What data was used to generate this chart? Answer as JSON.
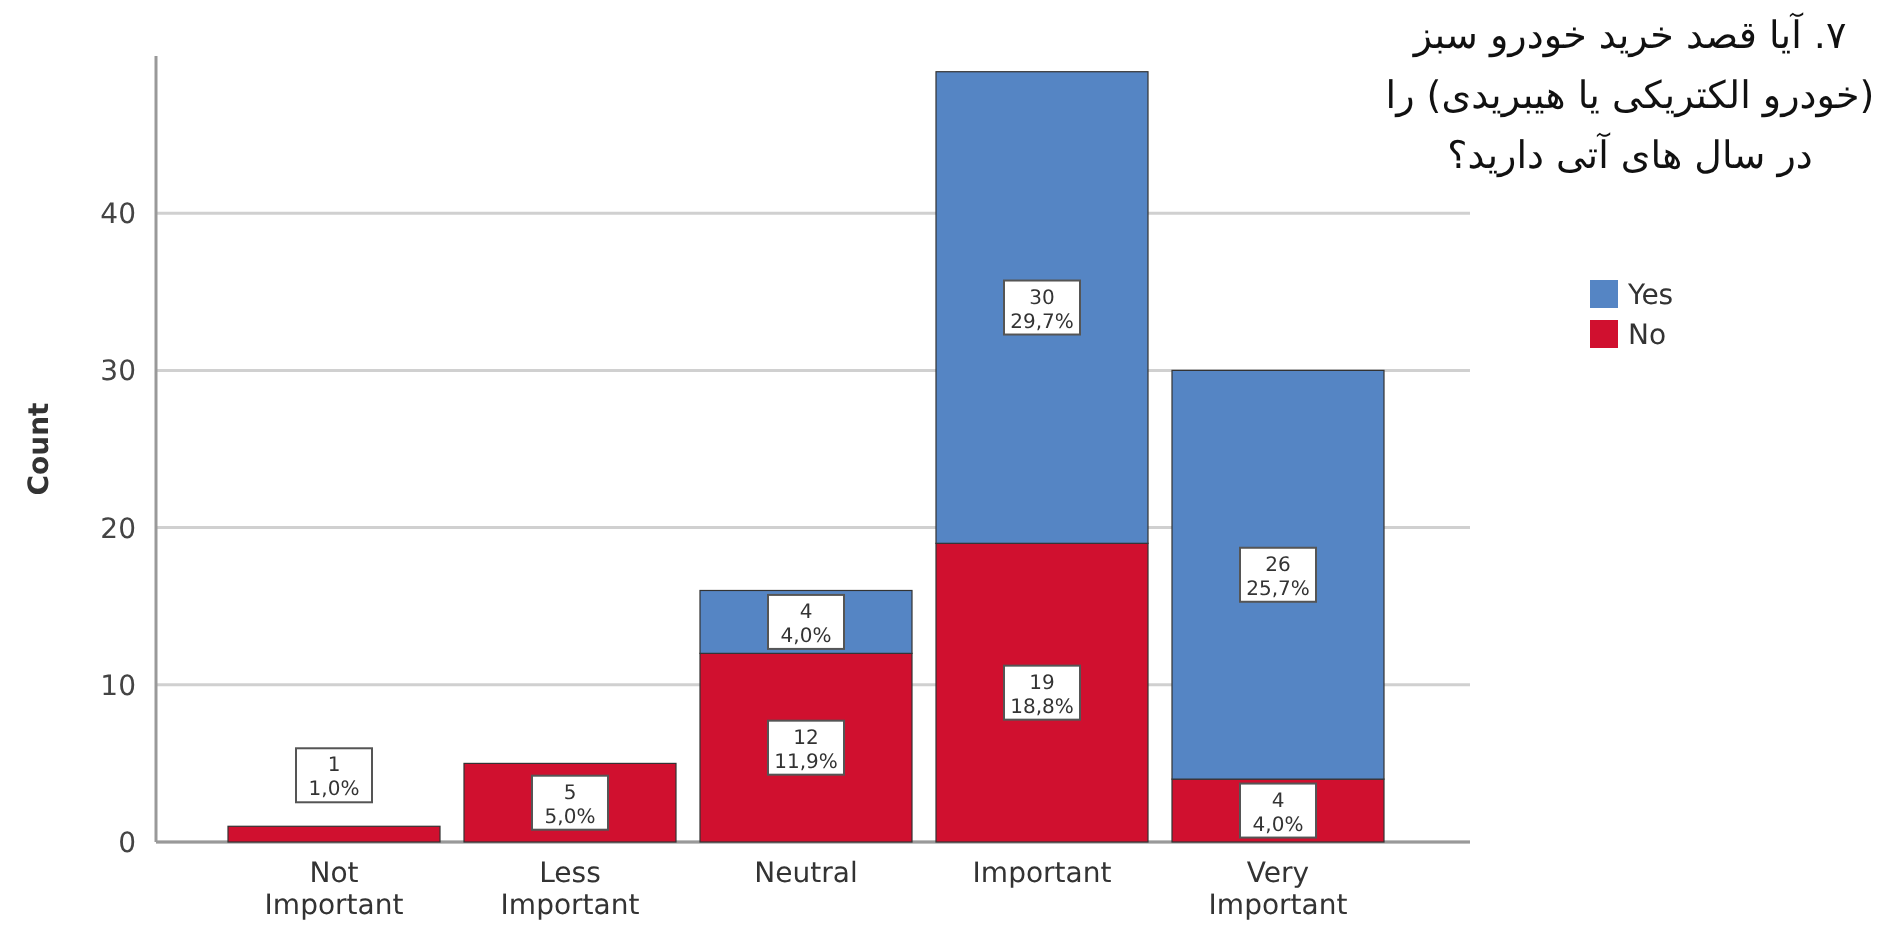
{
  "chart_data": {
    "type": "bar",
    "title": "۷. آیا قصد خرید خودرو سبز\n(خودرو الکتریکی یا هیبریدی) را\nدر سال های آتی دارید؟",
    "ylabel": "Count",
    "categories": [
      "Not\nImportant",
      "Less\nImportant",
      "Neutral",
      "Important",
      "Very\nImportant"
    ],
    "stacked": true,
    "ylim": [
      0,
      50
    ],
    "yticks": [
      0,
      10,
      20,
      30,
      40
    ],
    "grid": "y",
    "legend": "right",
    "series": [
      {
        "name": "No",
        "color": "#d0102f",
        "values": [
          1,
          5,
          12,
          19,
          4
        ],
        "value_labels": [
          "1\n1,0%",
          "5\n5,0%",
          "12\n11,9%",
          "19\n18,8%",
          "4\n4,0%"
        ]
      },
      {
        "name": "Yes",
        "color": "#5585c4",
        "values": [
          0,
          0,
          4,
          30,
          26
        ],
        "value_labels": [
          null,
          null,
          "4\n4,0%",
          "30\n29,7%",
          "26\n25,7%"
        ]
      }
    ]
  }
}
